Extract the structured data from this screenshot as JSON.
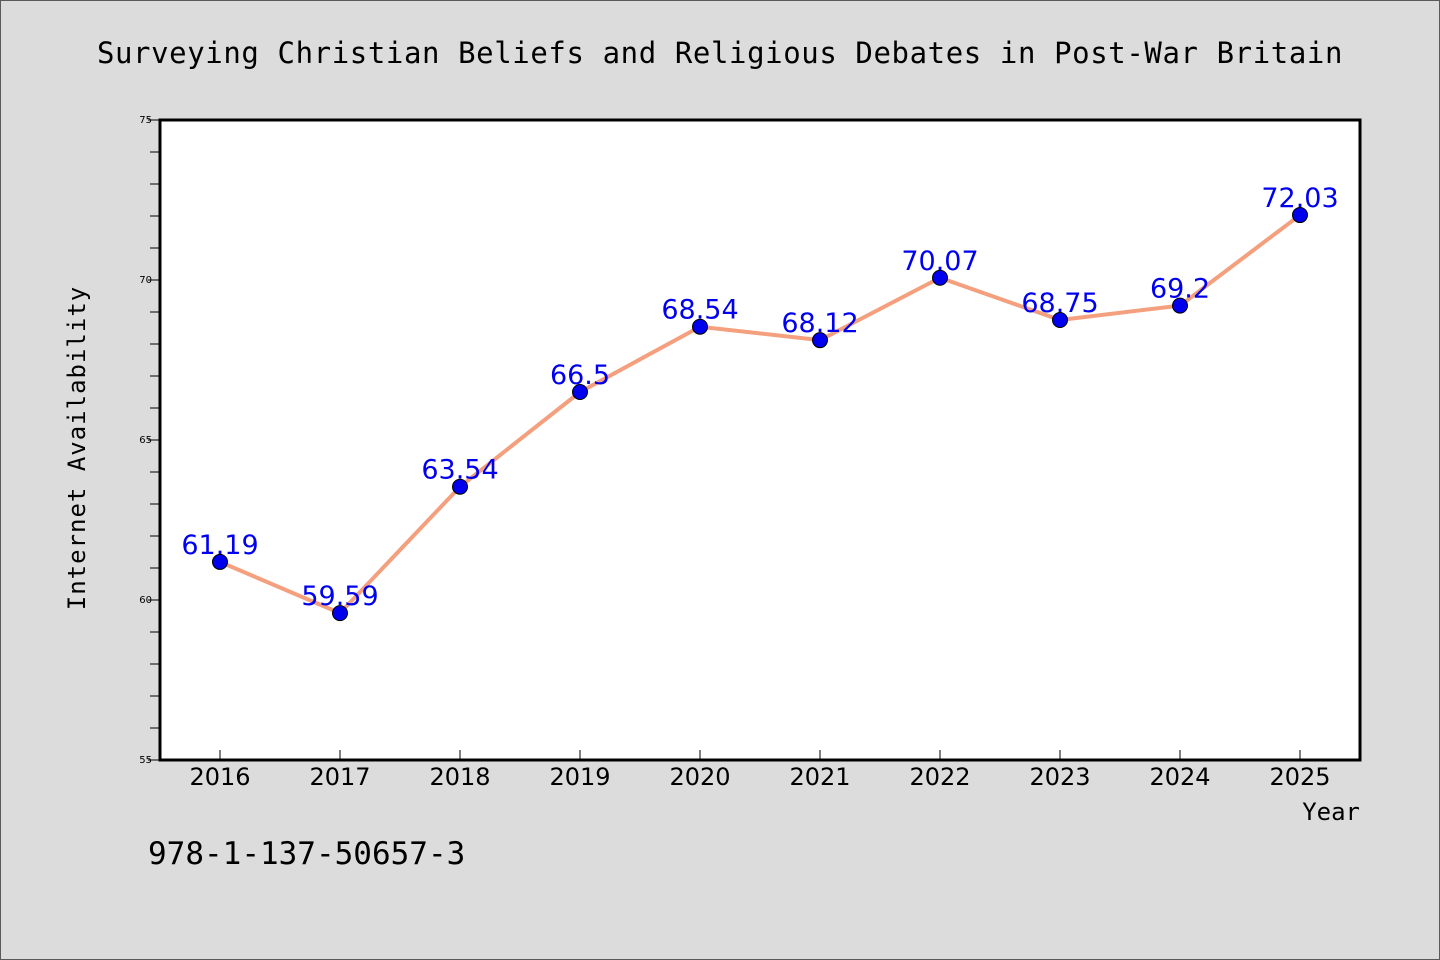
{
  "chart_data": {
    "type": "line",
    "title": "Surveying Christian Beliefs and Religious Debates in Post-War Britain",
    "xlabel": "Year",
    "ylabel": "Internet Availability",
    "categories": [
      "2016",
      "2017",
      "2018",
      "2019",
      "2020",
      "2021",
      "2022",
      "2023",
      "2024",
      "2025"
    ],
    "values": [
      61.19,
      59.59,
      63.54,
      66.5,
      68.54,
      68.12,
      70.07,
      68.75,
      69.2,
      72.03
    ],
    "data_labels": [
      "61.19",
      "59.59",
      "63.54",
      "66.5",
      "68.54",
      "68.12",
      "70.07",
      "68.75",
      "69.2",
      "72.03"
    ],
    "ylim": [
      55,
      75
    ],
    "yticks": [
      55,
      60,
      65,
      70,
      75
    ],
    "grid": false,
    "legend": "none",
    "colors": {
      "line": "#f4a07e",
      "marker": "#0000ee",
      "label": "#0000ee",
      "background": "#dcdcdc",
      "plot_area": "#ffffff"
    }
  },
  "annotation": "978-1-137-50657-3"
}
